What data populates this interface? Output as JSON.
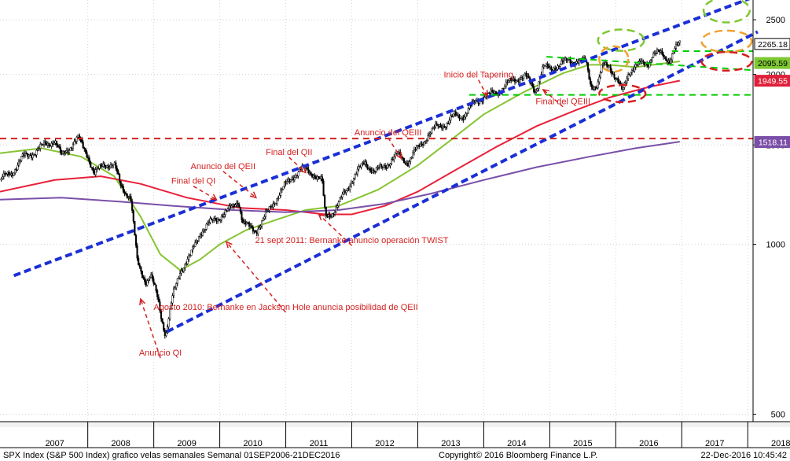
{
  "chart_data": {
    "type": "candlestick",
    "title": "",
    "x_axis": {
      "labels": [
        "2007",
        "2008",
        "2009",
        "2010",
        "2011",
        "2012",
        "2013",
        "2014",
        "2015",
        "2016",
        "2017",
        "2018"
      ],
      "range": [
        2006.67,
        2018.08
      ]
    },
    "y_axis": {
      "scale": "log",
      "ticks": [
        500,
        1000,
        1500,
        2000,
        2500
      ],
      "range": [
        485,
        2710
      ]
    },
    "price_tags": [
      {
        "value": 2265.18,
        "label": "2265.18",
        "bg": "#ffffff",
        "fg": "#000000",
        "border": "#000000"
      },
      {
        "value": 2095.59,
        "label": "2095.59",
        "bg": "#7ec832",
        "fg": "#000000",
        "border": "#7ec832"
      },
      {
        "value": 1949.55,
        "label": "1949.55",
        "bg": "#e0203a",
        "fg": "#ffffff",
        "border": "#e0203a"
      },
      {
        "value": 1518.11,
        "label": "1518.11",
        "bg": "#7b4fa8",
        "fg": "#ffffff",
        "border": "#7b4fa8"
      }
    ],
    "price_series": [
      [
        2006.67,
        1300
      ],
      [
        2006.85,
        1340
      ],
      [
        2007.0,
        1420
      ],
      [
        2007.2,
        1460
      ],
      [
        2007.35,
        1500
      ],
      [
        2007.5,
        1530
      ],
      [
        2007.6,
        1430
      ],
      [
        2007.75,
        1500
      ],
      [
        2007.85,
        1540
      ],
      [
        2008.0,
        1440
      ],
      [
        2008.1,
        1330
      ],
      [
        2008.25,
        1390
      ],
      [
        2008.4,
        1380
      ],
      [
        2008.5,
        1270
      ],
      [
        2008.65,
        1210
      ],
      [
        2008.75,
        930
      ],
      [
        2008.8,
        900
      ],
      [
        2008.88,
        860
      ],
      [
        2008.95,
        880
      ],
      [
        2009.05,
        810
      ],
      [
        2009.12,
        740
      ],
      [
        2009.18,
        690
      ],
      [
        2009.28,
        800
      ],
      [
        2009.4,
        900
      ],
      [
        2009.55,
        950
      ],
      [
        2009.7,
        1050
      ],
      [
        2009.85,
        1090
      ],
      [
        2010.0,
        1120
      ],
      [
        2010.15,
        1150
      ],
      [
        2010.28,
        1200
      ],
      [
        2010.35,
        1090
      ],
      [
        2010.45,
        1070
      ],
      [
        2010.55,
        1060
      ],
      [
        2010.65,
        1100
      ],
      [
        2010.8,
        1180
      ],
      [
        2010.95,
        1250
      ],
      [
        2011.1,
        1320
      ],
      [
        2011.25,
        1360
      ],
      [
        2011.4,
        1340
      ],
      [
        2011.55,
        1290
      ],
      [
        2011.6,
        1120
      ],
      [
        2011.75,
        1150
      ],
      [
        2011.9,
        1240
      ],
      [
        2012.0,
        1300
      ],
      [
        2012.2,
        1400
      ],
      [
        2012.35,
        1340
      ],
      [
        2012.5,
        1380
      ],
      [
        2012.7,
        1440
      ],
      [
        2012.85,
        1400
      ],
      [
        2013.0,
        1480
      ],
      [
        2013.15,
        1560
      ],
      [
        2013.3,
        1620
      ],
      [
        2013.45,
        1640
      ],
      [
        2013.55,
        1690
      ],
      [
        2013.7,
        1690
      ],
      [
        2013.85,
        1780
      ],
      [
        2014.0,
        1830
      ],
      [
        2014.1,
        1840
      ],
      [
        2014.2,
        1860
      ],
      [
        2014.35,
        1920
      ],
      [
        2014.5,
        1970
      ],
      [
        2014.62,
        1990
      ],
      [
        2014.78,
        1870
      ],
      [
        2014.9,
        2060
      ],
      [
        2015.0,
        2040
      ],
      [
        2015.15,
        2090
      ],
      [
        2015.3,
        2110
      ],
      [
        2015.42,
        2120
      ],
      [
        2015.55,
        2100
      ],
      [
        2015.62,
        1920
      ],
      [
        2015.72,
        1910
      ],
      [
        2015.8,
        2070
      ],
      [
        2015.9,
        2080
      ],
      [
        2016.02,
        1950
      ],
      [
        2016.1,
        1860
      ],
      [
        2016.2,
        2030
      ],
      [
        2016.3,
        2070
      ],
      [
        2016.42,
        2090
      ],
      [
        2016.5,
        2100
      ],
      [
        2016.55,
        2170
      ],
      [
        2016.65,
        2180
      ],
      [
        2016.75,
        2150
      ],
      [
        2016.82,
        2120
      ],
      [
        2016.88,
        2200
      ],
      [
        2016.97,
        2265
      ]
    ],
    "lines": {
      "ma_green": [
        [
          2006.67,
          1450
        ],
        [
          2007.3,
          1480
        ],
        [
          2007.9,
          1430
        ],
        [
          2008.4,
          1320
        ],
        [
          2008.8,
          1120
        ],
        [
          2009.1,
          960
        ],
        [
          2009.4,
          900
        ],
        [
          2009.7,
          940
        ],
        [
          2010.0,
          1000
        ],
        [
          2010.4,
          1060
        ],
        [
          2010.8,
          1100
        ],
        [
          2011.3,
          1150
        ],
        [
          2011.8,
          1170
        ],
        [
          2012.4,
          1250
        ],
        [
          2013.0,
          1380
        ],
        [
          2013.5,
          1530
        ],
        [
          2014.0,
          1700
        ],
        [
          2014.6,
          1860
        ],
        [
          2015.2,
          2010
        ],
        [
          2015.6,
          2080
        ],
        [
          2015.9,
          2080
        ],
        [
          2016.3,
          2060
        ],
        [
          2016.7,
          2090
        ],
        [
          2016.97,
          2110
        ]
      ],
      "ma_red": [
        [
          2006.67,
          1240
        ],
        [
          2007.5,
          1300
        ],
        [
          2008.2,
          1320
        ],
        [
          2008.8,
          1280
        ],
        [
          2009.5,
          1210
        ],
        [
          2010.3,
          1160
        ],
        [
          2011.0,
          1150
        ],
        [
          2011.6,
          1130
        ],
        [
          2012.0,
          1130
        ],
        [
          2012.5,
          1170
        ],
        [
          2013.0,
          1240
        ],
        [
          2013.6,
          1360
        ],
        [
          2014.2,
          1490
        ],
        [
          2014.8,
          1620
        ],
        [
          2015.4,
          1730
        ],
        [
          2015.9,
          1820
        ],
        [
          2016.5,
          1900
        ],
        [
          2016.97,
          1950
        ]
      ],
      "ma_purple": [
        [
          2006.67,
          1200
        ],
        [
          2007.6,
          1210
        ],
        [
          2008.5,
          1190
        ],
        [
          2009.3,
          1170
        ],
        [
          2010.2,
          1150
        ],
        [
          2011.0,
          1140
        ],
        [
          2011.8,
          1150
        ],
        [
          2012.5,
          1180
        ],
        [
          2013.2,
          1230
        ],
        [
          2014.0,
          1300
        ],
        [
          2014.8,
          1370
        ],
        [
          2015.6,
          1430
        ],
        [
          2016.3,
          1480
        ],
        [
          2016.97,
          1520
        ]
      ]
    },
    "trend_lines": [
      {
        "name": "channel-upper",
        "color": "#1a2fd6",
        "points": [
          [
            2006.88,
            880
          ],
          [
            2018.15,
            2760
          ]
        ]
      },
      {
        "name": "channel-lower",
        "color": "#1a2fd6",
        "points": [
          [
            2009.2,
            700
          ],
          [
            2018.15,
            2380
          ]
        ]
      },
      {
        "name": "support-1518",
        "color": "#d42020",
        "points": [
          [
            2006.67,
            1540
          ],
          [
            2018.08,
            1540
          ]
        ]
      },
      {
        "name": "green-upper-level",
        "color": "#00cc00",
        "points": [
          [
            2016.85,
            2200
          ],
          [
            2018.08,
            2200
          ]
        ]
      },
      {
        "name": "green-lower-level",
        "color": "#00cc00",
        "points": [
          [
            2013.78,
            1840
          ],
          [
            2018.08,
            1840
          ]
        ]
      },
      {
        "name": "green-descending",
        "color": "#00cc00",
        "points": [
          [
            2014.95,
            2150
          ],
          [
            2018.08,
            2035
          ]
        ]
      }
    ],
    "ellipses": [
      {
        "color": "#7ec832",
        "center": [
          2017.68,
          2600
        ],
        "rx_years": 0.35,
        "height": 260
      },
      {
        "color": "#7ec832",
        "center": [
          2016.08,
          2300
        ],
        "rx_years": 0.35,
        "height": 200
      },
      {
        "color": "#f0a030",
        "center": [
          2017.68,
          2290
        ],
        "rx_years": 0.38,
        "height": 200
      },
      {
        "color": "#f0a030",
        "center": [
          2015.97,
          2130
        ],
        "rx_years": 0.22,
        "height": 220
      },
      {
        "color": "#d42020",
        "center": [
          2017.68,
          2110
        ],
        "rx_years": 0.38,
        "height": 160
      },
      {
        "color": "#d42020",
        "center": [
          2016.1,
          1850
        ],
        "rx_years": 0.35,
        "height": 130
      }
    ],
    "annotations": [
      {
        "text": "Inicio del Tapering",
        "anchor": [
          2013.92,
          1975
        ],
        "arrow_to": [
          2014.05,
          1830
        ]
      },
      {
        "text": "Anuncio del QEIII",
        "anchor": [
          2012.55,
          1560
        ],
        "arrow_to": [
          2012.75,
          1420
        ]
      },
      {
        "text": "Final del QII",
        "anchor": [
          2011.05,
          1440
        ],
        "arrow_to": [
          2011.3,
          1340
        ]
      },
      {
        "text": "Anuncio del QEII",
        "anchor": [
          2010.05,
          1360
        ],
        "arrow_to": [
          2010.55,
          1210
        ]
      },
      {
        "text": "Final del QI",
        "anchor": [
          2009.6,
          1280
        ],
        "arrow_to": [
          2009.95,
          1200
        ]
      },
      {
        "text": "Final del QEIII",
        "anchor": [
          2015.2,
          1770
        ],
        "arrow_to": [
          2014.9,
          1880
        ]
      },
      {
        "text": "21 sept 2011: Bernanke anuncio operación TWIST",
        "anchor": [
          2012.0,
          1005
        ],
        "arrow_to": [
          2011.5,
          1130
        ]
      },
      {
        "text": "Agosto 2010: Bernanke en Jackson Hole anuncia posibilidad de QEII",
        "anchor": [
          2011.0,
          765
        ],
        "arrow_to": [
          2010.1,
          1010
        ]
      },
      {
        "text": "Anuncio QI",
        "anchor": [
          2009.1,
          635
        ],
        "arrow_to": [
          2008.8,
          800
        ]
      }
    ]
  },
  "footer": {
    "left": "SPX Index (S&P 500 Index) grafico velas semanales  Semanal 01SEP2006-21DEC2016",
    "center": "Copyright© 2016 Bloomberg Finance L.P.",
    "right": "22-Dec-2016 10:45:42"
  }
}
